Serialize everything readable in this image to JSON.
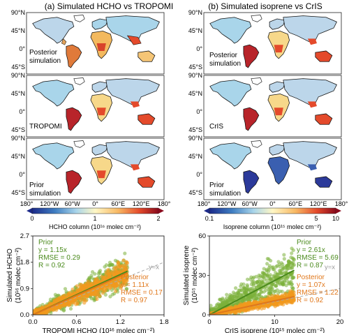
{
  "left_panel": {
    "title": "(a) Simulated HCHO vs TROPOMI",
    "maps": [
      {
        "label_lines": [
          "Posterior",
          "simulation"
        ]
      },
      {
        "label_lines": [
          "TROPOMI"
        ]
      },
      {
        "label_lines": [
          "Prior",
          "simulation"
        ]
      }
    ],
    "colorbar": {
      "label": "HCHO column (10¹⁶ molec cm⁻²)",
      "ticks": [
        "0",
        "1",
        "2"
      ]
    },
    "lon_ticks": [
      "180°",
      "120°W",
      "60°W",
      "0°",
      "60°E",
      "120°E",
      "180°"
    ],
    "lat_ticks": [
      "90°N",
      "45°N",
      "0°",
      "45°S"
    ]
  },
  "right_panel": {
    "title": "(b) Simulated isoprene vs CrIS",
    "maps": [
      {
        "label_lines": [
          "Posterior",
          "simulation"
        ]
      },
      {
        "label_lines": [
          "CrIS"
        ]
      },
      {
        "label_lines": [
          "Prior",
          "simulation"
        ]
      }
    ],
    "colorbar": {
      "label": "Isoprene column (10¹⁵ molec cm⁻²)",
      "ticks": [
        "0.1",
        "1",
        "5",
        "10"
      ]
    },
    "lon_ticks": [
      "180°",
      "120°W",
      "60°W",
      "0°",
      "60°E",
      "120°E",
      "180°"
    ],
    "lat_ticks": [
      "90°N",
      "45°N",
      "0°",
      "45°S"
    ]
  },
  "colors": {
    "prior": "#7cb03a",
    "prior_line": "#4a8a1c",
    "posterior": "#f29a1e",
    "posterior_line": "#e0771a",
    "one_to_one": "#aaaaaa"
  },
  "chart_data": [
    {
      "type": "scatter",
      "xlabel": "TROPOMI HCHO (10¹⁶ molec cm⁻²)",
      "ylabel_lines": [
        "Simulated HCHO",
        "(10¹⁶ molec cm⁻²)"
      ],
      "xlim": [
        0,
        1.8
      ],
      "ylim": [
        0,
        2.7
      ],
      "x_ticks": [
        "0.0",
        "0.6",
        "1.2",
        "1.8"
      ],
      "y_ticks": [
        "0.0",
        "0.9",
        "1.8",
        "2.7"
      ],
      "one_to_one_label": "y=x",
      "series": [
        {
          "name": "Prior",
          "stats": [
            "Prior",
            "y = 1.15x",
            "RMSE = 0.29",
            "R = 0.92"
          ],
          "slope": 1.15
        },
        {
          "name": "Posterior",
          "stats": [
            "Posterior",
            "y = 1.11x",
            "RMSE = 0.17",
            "R = 0.97"
          ],
          "slope": 1.11
        }
      ]
    },
    {
      "type": "scatter",
      "xlabel": "CrIS isoprene (10¹⁵ molec cm⁻²)",
      "ylabel_lines": [
        "Simulated isoprene",
        "(10¹⁵ molec cm⁻²)"
      ],
      "xlim": [
        0,
        20
      ],
      "ylim": [
        0,
        60
      ],
      "x_ticks": [
        "0",
        "10",
        "20"
      ],
      "y_ticks": [
        "0",
        "30",
        "60"
      ],
      "one_to_one_label": "y=x",
      "series": [
        {
          "name": "Prior",
          "stats": [
            "Prior",
            "y = 2.61x",
            "RMSE = 5.69",
            "R = 0.87"
          ],
          "slope": 2.61
        },
        {
          "name": "Posterior",
          "stats": [
            "Posterior",
            "y = 1.07x",
            "RMSE = 1.22",
            "R = 0.92"
          ],
          "slope": 1.07
        }
      ]
    }
  ]
}
